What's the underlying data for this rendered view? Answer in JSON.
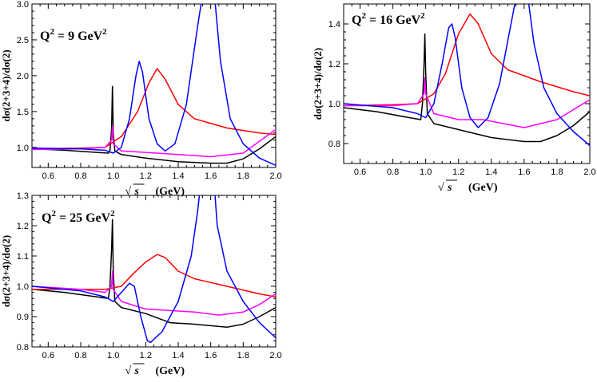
{
  "chart_data": [
    {
      "type": "line",
      "annotation": "Q2 = 9 GeV2",
      "annotation_parts": {
        "q": "Q",
        "sup1": "2",
        "eq": " = 9 GeV",
        "sup2": "2"
      },
      "xlabel": "√s  (GeV)",
      "xlabel_parts": {
        "sym": "s",
        "unit": "(GeV)"
      },
      "ylabel": "dσ(2+3+4)/dσ(2)",
      "xlim": [
        0.5,
        2.0
      ],
      "ylim": [
        0.72,
        3.0
      ],
      "xticks": [
        "0.6",
        "0.8",
        "1.0",
        "1.2",
        "1.4",
        "1.6",
        "1.8",
        "2.0"
      ],
      "yticks": [
        "1.0",
        "1.5",
        "2.0",
        "2.5",
        "3.0"
      ],
      "colors": {
        "black": "#000000",
        "red": "#ff0000",
        "blue": "#0000ff",
        "magenta": "#ff00ff"
      },
      "series": [
        {
          "color": "#000000",
          "points": [
            [
              0.5,
              0.98
            ],
            [
              0.7,
              0.96
            ],
            [
              0.9,
              0.93
            ],
            [
              0.97,
              0.92
            ],
            [
              0.98,
              0.96
            ],
            [
              0.99,
              1.25
            ],
            [
              0.995,
              1.85
            ],
            [
              1.0,
              1.2
            ],
            [
              1.01,
              0.95
            ],
            [
              1.05,
              0.9
            ],
            [
              1.2,
              0.85
            ],
            [
              1.4,
              0.8
            ],
            [
              1.6,
              0.78
            ],
            [
              1.7,
              0.78
            ],
            [
              1.8,
              0.84
            ],
            [
              1.9,
              0.98
            ],
            [
              2.0,
              1.15
            ]
          ]
        },
        {
          "color": "#ff0000",
          "points": [
            [
              0.5,
              0.98
            ],
            [
              0.8,
              0.99
            ],
            [
              0.95,
              1.0
            ],
            [
              1.05,
              1.15
            ],
            [
              1.15,
              1.5
            ],
            [
              1.22,
              1.9
            ],
            [
              1.27,
              2.1
            ],
            [
              1.32,
              1.95
            ],
            [
              1.4,
              1.6
            ],
            [
              1.5,
              1.4
            ],
            [
              1.7,
              1.27
            ],
            [
              1.9,
              1.2
            ],
            [
              2.0,
              1.18
            ]
          ]
        },
        {
          "color": "#ff00ff",
          "points": [
            [
              0.5,
              0.97
            ],
            [
              0.8,
              0.98
            ],
            [
              0.95,
              1.0
            ],
            [
              0.99,
              1.1
            ],
            [
              0.995,
              1.3
            ],
            [
              1.0,
              1.05
            ],
            [
              1.05,
              0.95
            ],
            [
              1.2,
              0.93
            ],
            [
              1.4,
              0.9
            ],
            [
              1.6,
              0.87
            ],
            [
              1.8,
              0.92
            ],
            [
              2.0,
              1.25
            ]
          ]
        },
        {
          "color": "#0000ff",
          "points": [
            [
              0.5,
              0.99
            ],
            [
              0.8,
              0.98
            ],
            [
              0.95,
              0.96
            ],
            [
              1.0,
              0.92
            ],
            [
              1.05,
              1.0
            ],
            [
              1.1,
              1.4
            ],
            [
              1.14,
              2.0
            ],
            [
              1.16,
              2.2
            ],
            [
              1.18,
              2.05
            ],
            [
              1.22,
              1.4
            ],
            [
              1.27,
              1.05
            ],
            [
              1.32,
              0.95
            ],
            [
              1.38,
              1.05
            ],
            [
              1.45,
              1.6
            ],
            [
              1.52,
              2.7
            ],
            [
              1.555,
              3.2
            ],
            [
              1.62,
              3.2
            ],
            [
              1.66,
              2.2
            ],
            [
              1.72,
              1.4
            ],
            [
              1.8,
              1.05
            ],
            [
              1.9,
              0.85
            ],
            [
              2.0,
              0.75
            ]
          ]
        }
      ]
    },
    {
      "type": "line",
      "annotation": "Q2 = 16 GeV2",
      "annotation_parts": {
        "q": "Q",
        "sup1": "2",
        "eq": " = 16 GeV",
        "sup2": "2"
      },
      "xlabel": "√s  (GeV)",
      "xlabel_parts": {
        "sym": "s",
        "unit": "(GeV)"
      },
      "ylabel": "dσ(2+3+4)/dσ(2)",
      "xlim": [
        0.5,
        2.0
      ],
      "ylim": [
        0.7,
        1.5
      ],
      "xticks": [
        "0.6",
        "0.8",
        "1.0",
        "1.2",
        "1.4",
        "1.6",
        "1.8",
        "2.0"
      ],
      "yticks": [
        "0.8",
        "1.0",
        "1.2",
        "1.4"
      ],
      "series": [
        {
          "color": "#000000",
          "points": [
            [
              0.5,
              0.98
            ],
            [
              0.7,
              0.96
            ],
            [
              0.9,
              0.93
            ],
            [
              0.97,
              0.92
            ],
            [
              0.98,
              1.0
            ],
            [
              0.99,
              1.2
            ],
            [
              0.995,
              1.35
            ],
            [
              1.0,
              1.15
            ],
            [
              1.01,
              0.95
            ],
            [
              1.05,
              0.9
            ],
            [
              1.2,
              0.87
            ],
            [
              1.4,
              0.83
            ],
            [
              1.6,
              0.81
            ],
            [
              1.7,
              0.81
            ],
            [
              1.8,
              0.84
            ],
            [
              1.9,
              0.89
            ],
            [
              2.0,
              0.96
            ]
          ]
        },
        {
          "color": "#ff0000",
          "points": [
            [
              0.5,
              0.99
            ],
            [
              0.8,
              0.995
            ],
            [
              0.95,
              1.0
            ],
            [
              1.05,
              1.05
            ],
            [
              1.12,
              1.15
            ],
            [
              1.2,
              1.35
            ],
            [
              1.27,
              1.45
            ],
            [
              1.32,
              1.4
            ],
            [
              1.4,
              1.25
            ],
            [
              1.5,
              1.17
            ],
            [
              1.7,
              1.11
            ],
            [
              1.9,
              1.06
            ],
            [
              2.0,
              1.04
            ]
          ]
        },
        {
          "color": "#ff00ff",
          "points": [
            [
              0.5,
              0.99
            ],
            [
              0.8,
              0.99
            ],
            [
              0.95,
              1.0
            ],
            [
              0.99,
              1.05
            ],
            [
              0.995,
              1.13
            ],
            [
              1.0,
              1.05
            ],
            [
              1.05,
              0.95
            ],
            [
              1.2,
              0.92
            ],
            [
              1.35,
              0.92
            ],
            [
              1.6,
              0.88
            ],
            [
              1.8,
              0.92
            ],
            [
              2.0,
              1.02
            ]
          ]
        },
        {
          "color": "#0000ff",
          "points": [
            [
              0.5,
              1.0
            ],
            [
              0.8,
              0.98
            ],
            [
              0.95,
              0.95
            ],
            [
              1.0,
              0.93
            ],
            [
              1.05,
              1.0
            ],
            [
              1.1,
              1.2
            ],
            [
              1.14,
              1.38
            ],
            [
              1.16,
              1.4
            ],
            [
              1.18,
              1.33
            ],
            [
              1.22,
              1.08
            ],
            [
              1.27,
              0.93
            ],
            [
              1.32,
              0.88
            ],
            [
              1.38,
              0.93
            ],
            [
              1.45,
              1.1
            ],
            [
              1.52,
              1.4
            ],
            [
              1.555,
              1.55
            ],
            [
              1.62,
              1.55
            ],
            [
              1.66,
              1.3
            ],
            [
              1.72,
              1.08
            ],
            [
              1.8,
              0.95
            ],
            [
              1.9,
              0.86
            ],
            [
              2.0,
              0.79
            ]
          ]
        }
      ]
    },
    {
      "type": "line",
      "annotation": "Q2 = 25 GeV2",
      "annotation_parts": {
        "q": "Q",
        "sup1": "2",
        "eq": " = 25 GeV",
        "sup2": "2"
      },
      "xlabel": "√s  (GeV)",
      "xlabel_parts": {
        "sym": "s",
        "unit": "(GeV)"
      },
      "ylabel": "dσ(2+3+4)/dσ(2)",
      "xlim": [
        0.5,
        2.0
      ],
      "ylim": [
        0.8,
        1.3
      ],
      "xticks": [
        "0.6",
        "0.8",
        "1.0",
        "1.2",
        "1.4",
        "1.6",
        "1.8",
        "2.0"
      ],
      "yticks": [
        "0.8",
        "0.9",
        "1.0",
        "1.1",
        "1.2",
        "1.3"
      ],
      "series": [
        {
          "color": "#000000",
          "points": [
            [
              0.5,
              0.99
            ],
            [
              0.7,
              0.98
            ],
            [
              0.9,
              0.965
            ],
            [
              0.97,
              0.96
            ],
            [
              0.98,
              1.0
            ],
            [
              0.99,
              1.12
            ],
            [
              0.995,
              1.22
            ],
            [
              1.0,
              1.05
            ],
            [
              1.01,
              0.95
            ],
            [
              1.05,
              0.93
            ],
            [
              1.2,
              0.91
            ],
            [
              1.35,
              0.88
            ],
            [
              1.5,
              0.875
            ],
            [
              1.7,
              0.865
            ],
            [
              1.8,
              0.875
            ],
            [
              1.9,
              0.9
            ],
            [
              2.0,
              0.93
            ]
          ]
        },
        {
          "color": "#ff0000",
          "points": [
            [
              0.5,
              0.99
            ],
            [
              0.8,
              0.99
            ],
            [
              0.95,
              0.99
            ],
            [
              1.05,
              1.0
            ],
            [
              1.12,
              1.04
            ],
            [
              1.2,
              1.08
            ],
            [
              1.27,
              1.105
            ],
            [
              1.32,
              1.095
            ],
            [
              1.4,
              1.05
            ],
            [
              1.5,
              1.025
            ],
            [
              1.7,
              1.0
            ],
            [
              1.9,
              0.975
            ],
            [
              2.0,
              0.965
            ]
          ]
        },
        {
          "color": "#ff00ff",
          "points": [
            [
              0.5,
              1.0
            ],
            [
              0.8,
              0.99
            ],
            [
              0.95,
              0.98
            ],
            [
              0.99,
              1.0
            ],
            [
              0.995,
              1.05
            ],
            [
              1.0,
              0.99
            ],
            [
              1.05,
              0.95
            ],
            [
              1.2,
              0.925
            ],
            [
              1.35,
              0.92
            ],
            [
              1.5,
              0.915
            ],
            [
              1.65,
              0.905
            ],
            [
              1.8,
              0.915
            ],
            [
              1.9,
              0.94
            ],
            [
              2.0,
              0.975
            ]
          ]
        },
        {
          "color": "#0000ff",
          "points": [
            [
              0.5,
              1.0
            ],
            [
              0.8,
              0.985
            ],
            [
              0.95,
              0.965
            ],
            [
              1.0,
              0.95
            ],
            [
              1.05,
              0.98
            ],
            [
              1.1,
              1.01
            ],
            [
              1.13,
              1.0
            ],
            [
              1.17,
              0.9
            ],
            [
              1.21,
              0.82
            ],
            [
              1.23,
              0.815
            ],
            [
              1.3,
              0.85
            ],
            [
              1.4,
              0.95
            ],
            [
              1.48,
              1.1
            ],
            [
              1.52,
              1.25
            ],
            [
              1.54,
              1.35
            ],
            [
              1.62,
              1.35
            ],
            [
              1.64,
              1.2
            ],
            [
              1.7,
              1.05
            ],
            [
              1.8,
              0.95
            ],
            [
              1.9,
              0.88
            ],
            [
              2.0,
              0.83
            ]
          ]
        }
      ]
    }
  ]
}
